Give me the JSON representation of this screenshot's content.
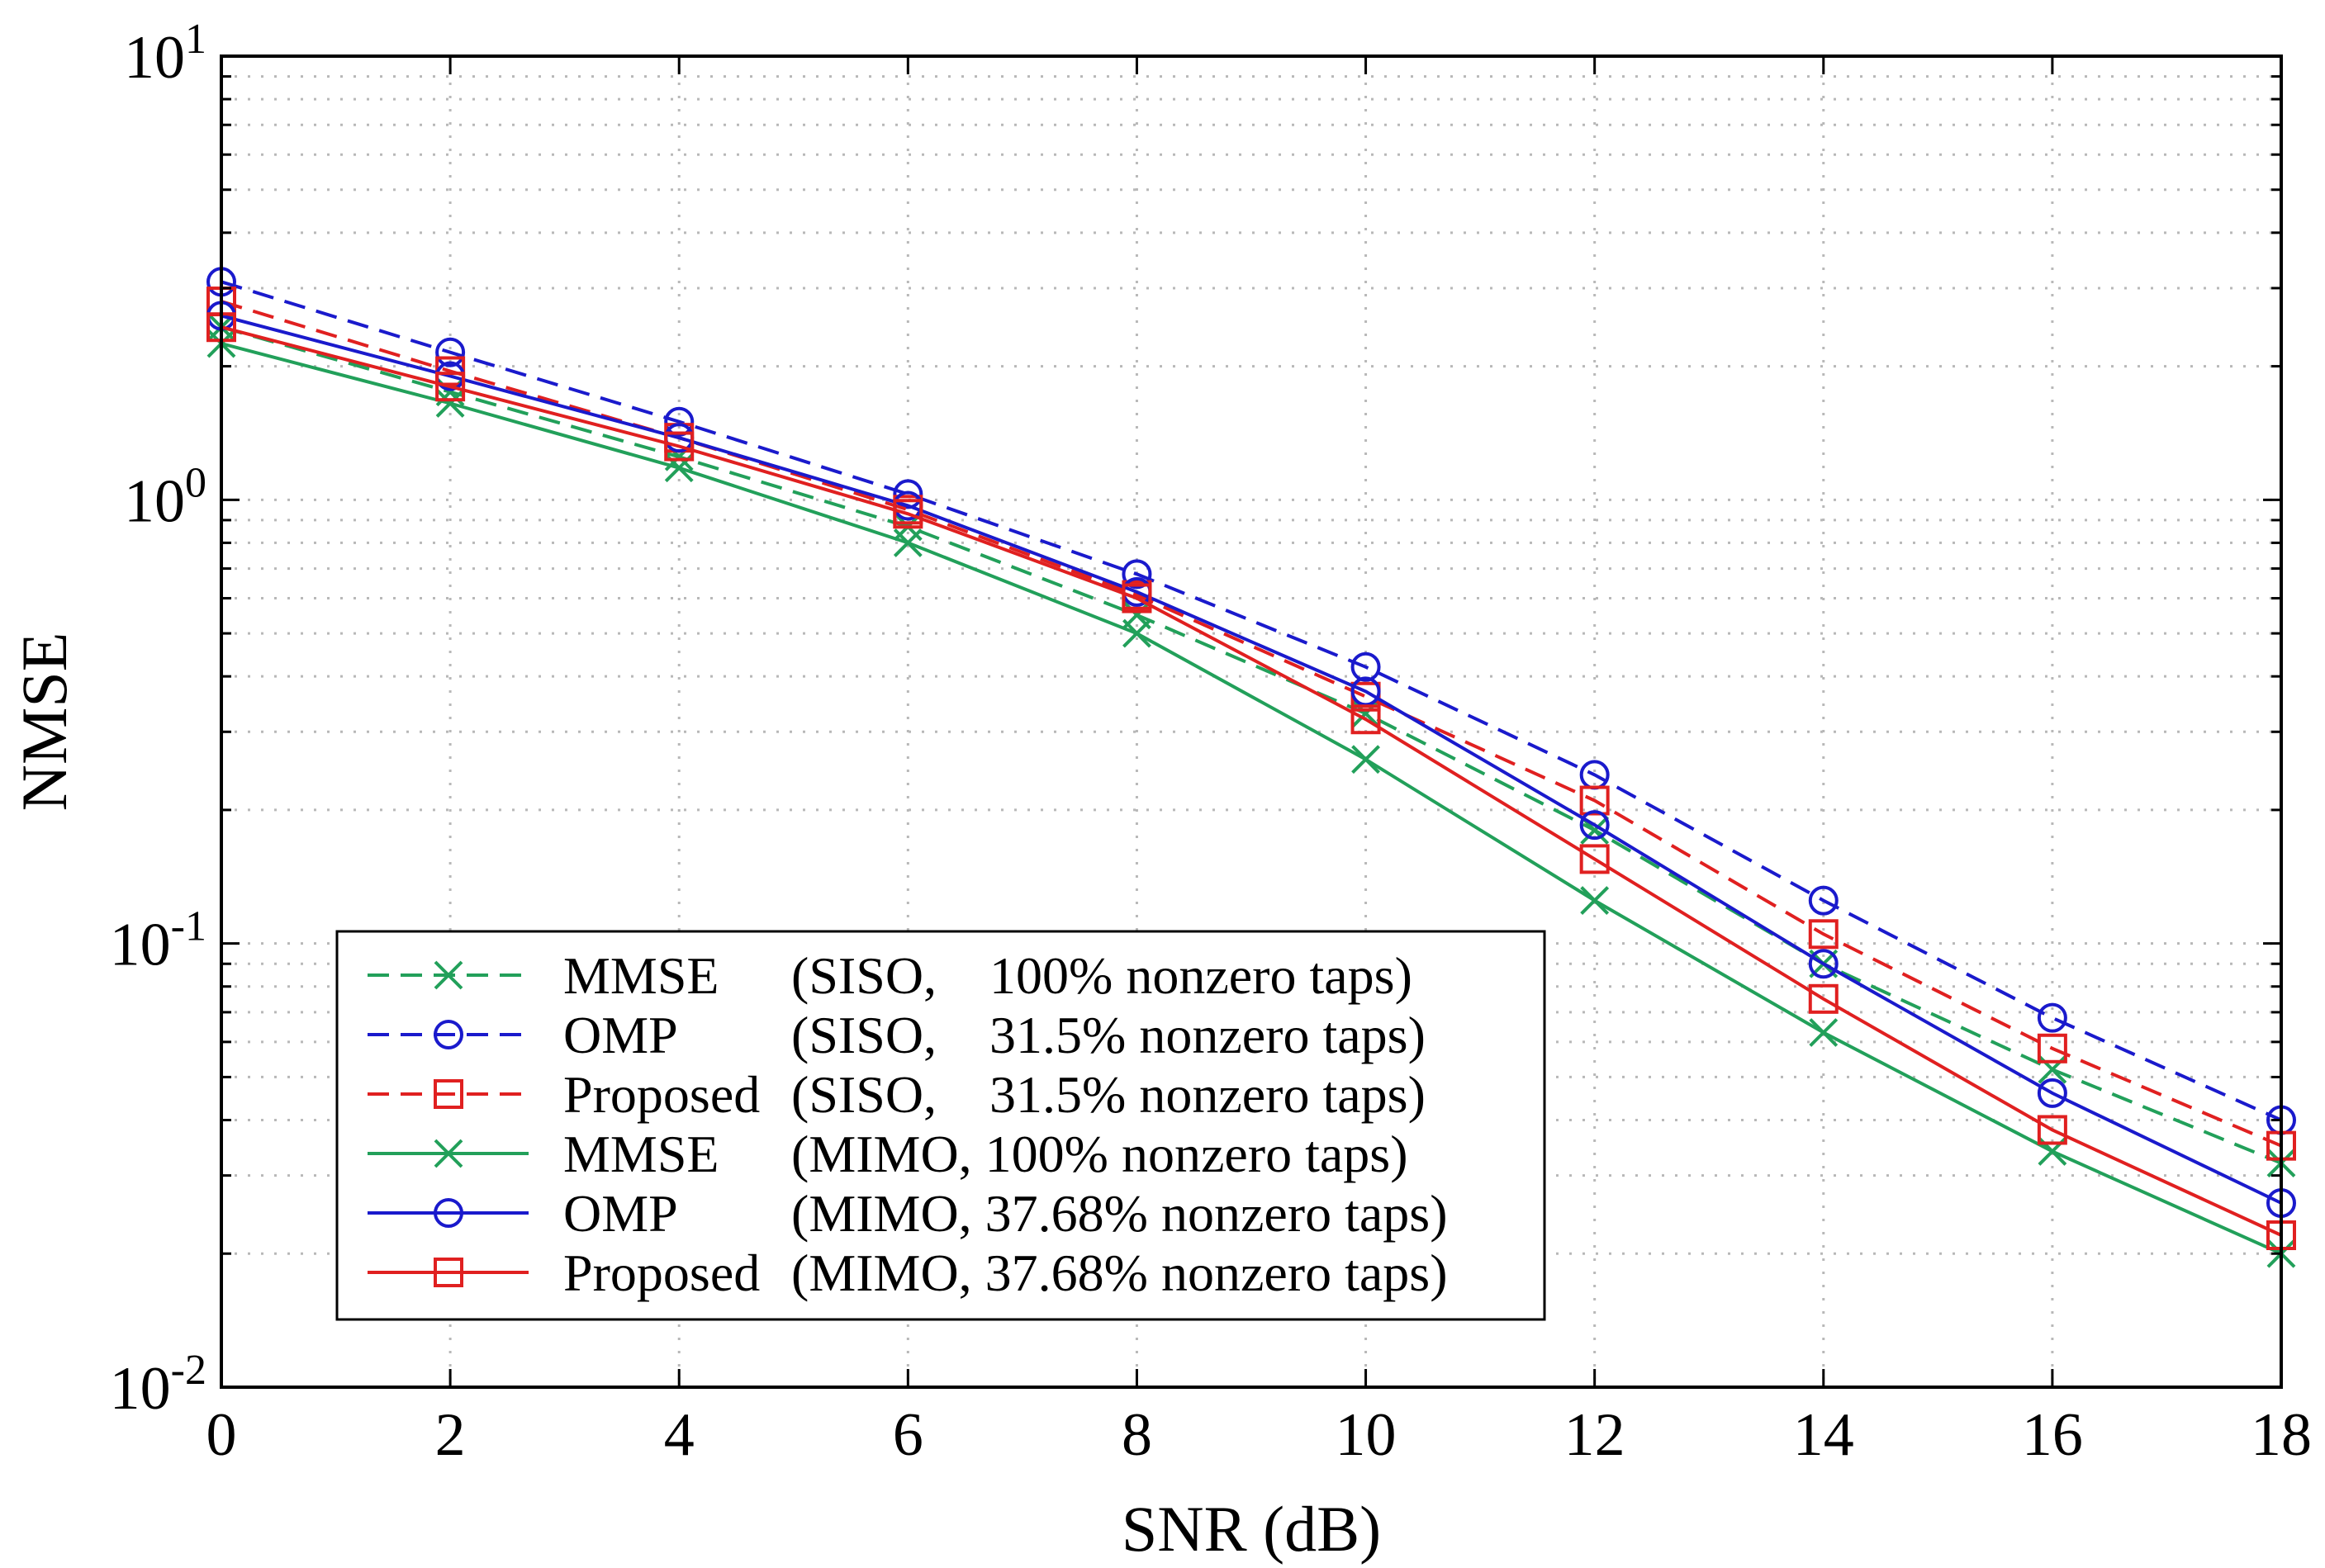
{
  "chart_data": {
    "type": "line",
    "xlabel": "SNR (dB)",
    "ylabel": "NMSE",
    "yscale": "log",
    "xlim": [
      0,
      18
    ],
    "ylim": [
      0.01,
      10
    ],
    "grid": true,
    "legend_position": "bottom-left",
    "x_ticks": [
      "0",
      "2",
      "4",
      "6",
      "8",
      "10",
      "12",
      "14",
      "16",
      "18"
    ],
    "y_ticks": [
      {
        "base": "10",
        "exp": "1"
      },
      {
        "base": "10",
        "exp": "0"
      },
      {
        "base": "10",
        "exp": "-1"
      },
      {
        "base": "10",
        "exp": "-2"
      }
    ],
    "x": [
      0,
      2,
      4,
      6,
      8,
      10,
      12,
      14,
      16,
      18
    ],
    "series": [
      {
        "name": "MMSE",
        "config": "(SISO,    100% nonzero taps)",
        "color": "#22a05a",
        "dash": true,
        "marker": "x",
        "values": [
          2.45,
          1.75,
          1.25,
          0.87,
          0.55,
          0.33,
          0.18,
          0.09,
          0.052,
          0.032
        ]
      },
      {
        "name": "OMP",
        "config": "(SISO,    31.5% nonzero taps)",
        "color": "#1a1acc",
        "dash": true,
        "marker": "circle",
        "values": [
          3.1,
          2.15,
          1.5,
          1.03,
          0.68,
          0.42,
          0.24,
          0.125,
          0.068,
          0.04
        ]
      },
      {
        "name": "Proposed",
        "config": "(SISO,    31.5% nonzero taps)",
        "color": "#e02020",
        "dash": true,
        "marker": "square",
        "values": [
          2.8,
          1.95,
          1.38,
          0.95,
          0.61,
          0.36,
          0.21,
          0.105,
          0.058,
          0.035
        ]
      },
      {
        "name": "MMSE",
        "config": "(MIMO, 100% nonzero taps)",
        "color": "#22a05a",
        "dash": false,
        "marker": "x",
        "values": [
          2.25,
          1.65,
          1.18,
          0.8,
          0.5,
          0.26,
          0.125,
          0.063,
          0.034,
          0.02
        ]
      },
      {
        "name": "OMP",
        "config": "(MIMO, 37.68% nonzero taps)",
        "color": "#1a1acc",
        "dash": false,
        "marker": "circle",
        "values": [
          2.6,
          1.9,
          1.38,
          0.97,
          0.62,
          0.37,
          0.185,
          0.09,
          0.046,
          0.026
        ]
      },
      {
        "name": "Proposed",
        "config": "(MIMO, 37.68% nonzero taps)",
        "color": "#e02020",
        "dash": false,
        "marker": "square",
        "values": [
          2.45,
          1.8,
          1.32,
          0.93,
          0.6,
          0.32,
          0.155,
          0.075,
          0.038,
          0.022
        ]
      }
    ]
  }
}
